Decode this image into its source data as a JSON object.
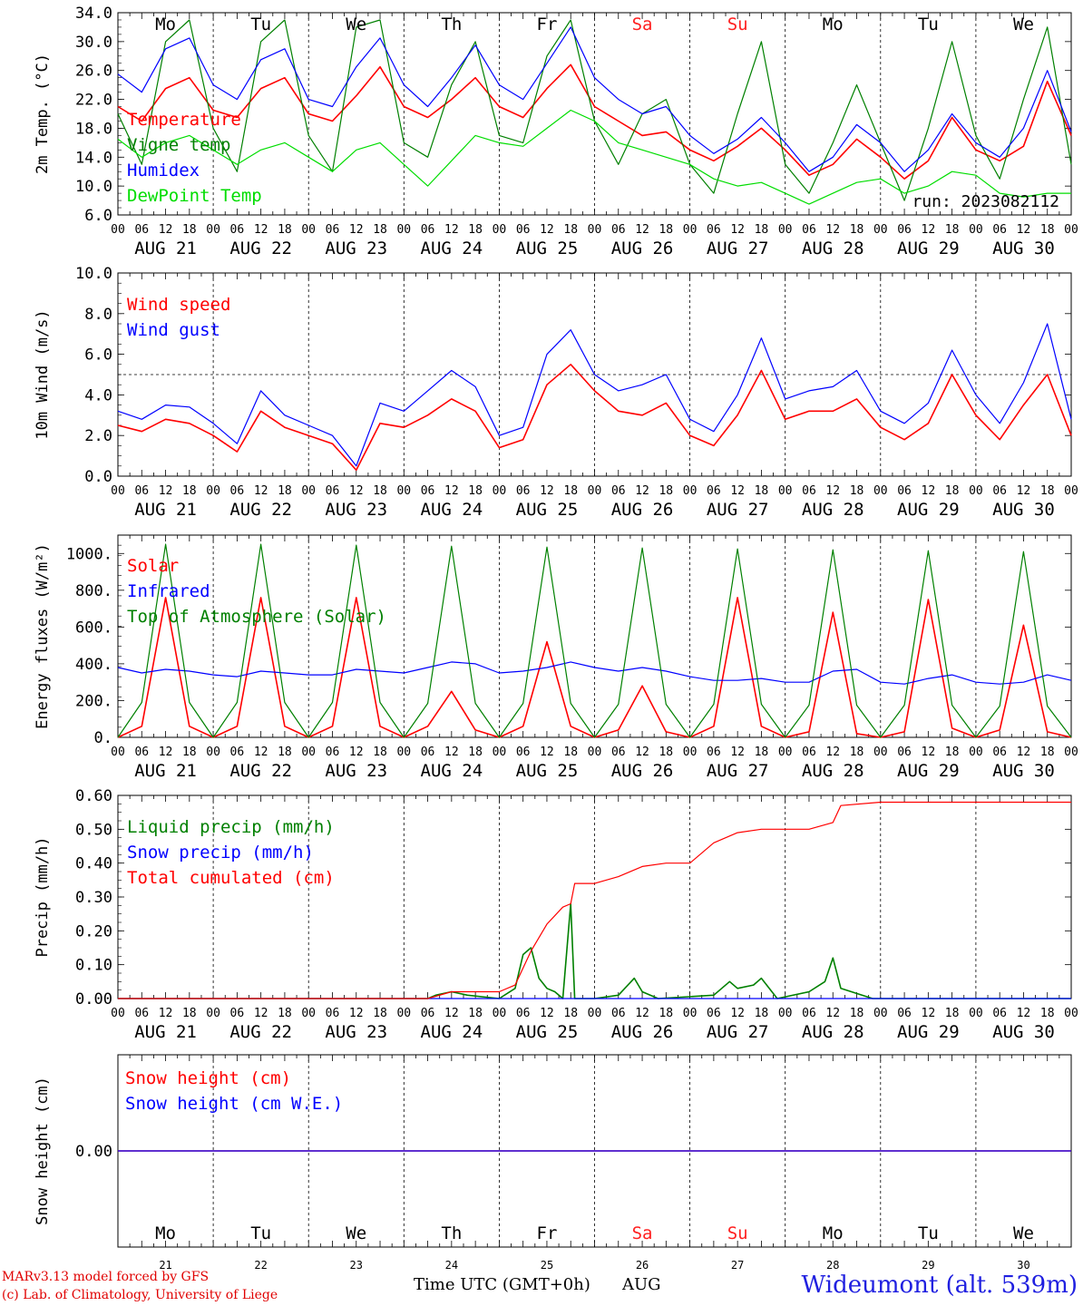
{
  "days": [
    "21",
    "22",
    "23",
    "24",
    "25",
    "26",
    "27",
    "28",
    "29",
    "30"
  ],
  "weekdays": [
    "Mo",
    "Tu",
    "We",
    "Th",
    "Fr",
    "Sa",
    "Su",
    "Mo",
    "Tu",
    "We"
  ],
  "weekday_colors": [
    "#000000",
    "#000000",
    "#000000",
    "#000000",
    "#000000",
    "#ff2020",
    "#ff2020",
    "#000000",
    "#000000",
    "#000000"
  ],
  "date_labels": [
    "AUG 21",
    "AUG 22",
    "AUG 23",
    "AUG 24",
    "AUG 25",
    "AUG 26",
    "AUG 27",
    "AUG 28",
    "AUG 29",
    "AUG 30"
  ],
  "hour_ticks": [
    "00",
    "06",
    "12",
    "18"
  ],
  "footer": {
    "credit_line1": "MARv3.13 model forced by GFS",
    "credit_line2": "(c) Lab. of Climatology, University of Liege",
    "xaxis_title": "Time UTC (GMT+0h)",
    "month": "AUG",
    "station": "Wideumont (alt. 539m)"
  },
  "chart_data": [
    {
      "type": "line",
      "ylabel": "2m Temp. (°C)",
      "ylim": [
        6.0,
        34.0
      ],
      "yticks": [
        "6.0",
        "10.0",
        "14.0",
        "18.0",
        "22.0",
        "26.0",
        "30.0",
        "34.0"
      ],
      "annotation": "run: 2023082112",
      "series": [
        {
          "name": "Temperature",
          "color": "#ff0000",
          "x": [
            0,
            6,
            12,
            18,
            24,
            30,
            36,
            42,
            48,
            54,
            60,
            66,
            72,
            78,
            84,
            90,
            96,
            102,
            108,
            114,
            120,
            126,
            132,
            138,
            144,
            150,
            156,
            162,
            168,
            174,
            180,
            186,
            192,
            198,
            204,
            210,
            216,
            222,
            228,
            234,
            240
          ],
          "values": [
            21,
            19,
            23.5,
            25,
            20.5,
            19.5,
            23.5,
            25,
            20,
            19,
            22.5,
            26.5,
            21,
            19.5,
            22,
            25,
            21,
            19.5,
            23.5,
            26.8,
            21,
            19,
            17,
            17.5,
            15,
            13.5,
            15.5,
            18,
            15,
            11.5,
            13,
            16.5,
            14,
            11,
            13.5,
            19.5,
            15,
            13.5,
            15.5,
            24.5,
            17
          ]
        },
        {
          "name": "Vigne temp",
          "color": "#008000",
          "x": [
            0,
            6,
            12,
            18,
            24,
            30,
            36,
            42,
            48,
            54,
            60,
            66,
            72,
            78,
            84,
            90,
            96,
            102,
            108,
            114,
            120,
            126,
            132,
            138,
            144,
            150,
            156,
            162,
            168,
            174,
            180,
            186,
            192,
            198,
            204,
            210,
            216,
            222,
            228,
            234,
            240
          ],
          "values": [
            20,
            13,
            30,
            33,
            18,
            12,
            30,
            33,
            17,
            12,
            32,
            33,
            16,
            14,
            24,
            30,
            17,
            16,
            28,
            33,
            19,
            13,
            20,
            22,
            13,
            9,
            20,
            30,
            13,
            9,
            16,
            24,
            16,
            8,
            18,
            30,
            17,
            11,
            22,
            32,
            13
          ]
        },
        {
          "name": "Humidex",
          "color": "#0000ff",
          "x": [
            0,
            6,
            12,
            18,
            24,
            30,
            36,
            42,
            48,
            54,
            60,
            66,
            72,
            78,
            84,
            90,
            96,
            102,
            108,
            114,
            120,
            126,
            132,
            138,
            144,
            150,
            156,
            162,
            168,
            174,
            180,
            186,
            192,
            198,
            204,
            210,
            216,
            222,
            228,
            234,
            240
          ],
          "values": [
            25.5,
            23,
            29,
            30.5,
            24,
            22,
            27.5,
            29,
            22,
            21,
            26.5,
            30.5,
            24,
            21,
            25,
            29.5,
            24,
            22,
            27,
            32,
            25,
            22,
            20,
            21,
            17,
            14.5,
            16.5,
            19.5,
            16,
            12,
            14,
            18.5,
            16,
            12,
            15,
            20,
            16,
            14,
            18,
            26,
            17.5
          ]
        },
        {
          "name": "DewPoint Temp",
          "color": "#00dd00",
          "x": [
            0,
            6,
            12,
            18,
            24,
            30,
            36,
            42,
            48,
            54,
            60,
            66,
            72,
            78,
            84,
            90,
            96,
            102,
            108,
            114,
            120,
            126,
            132,
            138,
            144,
            150,
            156,
            162,
            168,
            174,
            180,
            186,
            192,
            198,
            204,
            210,
            216,
            222,
            228,
            234,
            240
          ],
          "values": [
            16.5,
            14,
            16,
            17,
            15,
            13,
            15,
            16,
            14,
            12,
            15,
            16,
            13,
            10,
            13.5,
            17,
            16,
            15.5,
            18,
            20.5,
            19,
            16,
            15,
            14,
            13,
            11,
            10,
            10.5,
            9,
            7.5,
            9,
            10.5,
            11,
            9,
            10,
            12,
            11.5,
            9,
            8.5,
            9,
            9
          ]
        }
      ]
    },
    {
      "type": "line",
      "ylabel": "10m Wind (m/s)",
      "ylim": [
        0.0,
        10.0
      ],
      "yticks": [
        "0.0",
        "2.0",
        "4.0",
        "6.0",
        "8.0",
        "10.0"
      ],
      "reference_line": 5.0,
      "series": [
        {
          "name": "Wind speed",
          "color": "#ff0000",
          "x": [
            0,
            6,
            12,
            18,
            24,
            30,
            36,
            42,
            48,
            54,
            60,
            66,
            72,
            78,
            84,
            90,
            96,
            102,
            108,
            114,
            120,
            126,
            132,
            138,
            144,
            150,
            156,
            162,
            168,
            174,
            180,
            186,
            192,
            198,
            204,
            210,
            216,
            222,
            228,
            234,
            240
          ],
          "values": [
            2.5,
            2.2,
            2.8,
            2.6,
            2.0,
            1.2,
            3.2,
            2.4,
            2.0,
            1.6,
            0.3,
            2.6,
            2.4,
            3.0,
            3.8,
            3.2,
            1.4,
            1.8,
            4.5,
            5.5,
            4.2,
            3.2,
            3.0,
            3.6,
            2.0,
            1.5,
            3.0,
            5.2,
            2.8,
            3.2,
            3.2,
            3.8,
            2.4,
            1.8,
            2.6,
            5.0,
            3.0,
            1.8,
            3.5,
            5.0,
            2.0
          ]
        },
        {
          "name": "Wind gust",
          "color": "#0000ff",
          "x": [
            0,
            6,
            12,
            18,
            24,
            30,
            36,
            42,
            48,
            54,
            60,
            66,
            72,
            78,
            84,
            90,
            96,
            102,
            108,
            114,
            120,
            126,
            132,
            138,
            144,
            150,
            156,
            162,
            168,
            174,
            180,
            186,
            192,
            198,
            204,
            210,
            216,
            222,
            228,
            234,
            240
          ],
          "values": [
            3.2,
            2.8,
            3.5,
            3.4,
            2.6,
            1.6,
            4.2,
            3.0,
            2.5,
            2.0,
            0.5,
            3.6,
            3.2,
            4.2,
            5.2,
            4.4,
            2.0,
            2.4,
            6.0,
            7.2,
            5.0,
            4.2,
            4.5,
            5.0,
            2.8,
            2.2,
            4.0,
            6.8,
            3.8,
            4.2,
            4.4,
            5.2,
            3.2,
            2.6,
            3.6,
            6.2,
            4.0,
            2.6,
            4.6,
            7.5,
            2.8
          ]
        }
      ]
    },
    {
      "type": "line",
      "ylabel": "Energy fluxes (W/m²)",
      "ylim": [
        0,
        1100
      ],
      "yticks": [
        "0.",
        "200.",
        "400.",
        "600.",
        "800.",
        "1000."
      ],
      "series": [
        {
          "name": "Solar",
          "color": "#ff0000",
          "x": [
            0,
            6,
            12,
            18,
            24,
            30,
            36,
            42,
            48,
            54,
            60,
            66,
            72,
            78,
            84,
            90,
            96,
            102,
            108,
            114,
            120,
            126,
            132,
            138,
            144,
            150,
            156,
            162,
            168,
            174,
            180,
            186,
            192,
            198,
            204,
            210,
            216,
            222,
            228,
            234,
            240
          ],
          "values": [
            0,
            60,
            760,
            60,
            0,
            60,
            760,
            60,
            0,
            60,
            760,
            60,
            0,
            60,
            250,
            40,
            0,
            60,
            520,
            60,
            0,
            40,
            280,
            30,
            0,
            60,
            760,
            60,
            0,
            30,
            680,
            20,
            0,
            30,
            750,
            50,
            0,
            40,
            610,
            30,
            0
          ]
        },
        {
          "name": "Infrared",
          "color": "#0000ff",
          "x": [
            0,
            6,
            12,
            18,
            24,
            30,
            36,
            42,
            48,
            54,
            60,
            66,
            72,
            78,
            84,
            90,
            96,
            102,
            108,
            114,
            120,
            126,
            132,
            138,
            144,
            150,
            156,
            162,
            168,
            174,
            180,
            186,
            192,
            198,
            204,
            210,
            216,
            222,
            228,
            234,
            240
          ],
          "values": [
            380,
            350,
            370,
            360,
            340,
            330,
            360,
            350,
            340,
            340,
            370,
            360,
            350,
            380,
            410,
            400,
            350,
            360,
            380,
            410,
            380,
            360,
            380,
            360,
            330,
            310,
            310,
            320,
            300,
            300,
            360,
            370,
            300,
            290,
            320,
            340,
            300,
            290,
            300,
            340,
            310
          ]
        },
        {
          "name": "Top of Atmosphere (Solar)",
          "color": "#008000",
          "x": [
            0,
            6,
            12,
            18,
            24,
            30,
            36,
            42,
            48,
            54,
            60,
            66,
            72,
            78,
            84,
            90,
            96,
            102,
            108,
            114,
            120,
            126,
            132,
            138,
            144,
            150,
            156,
            162,
            168,
            174,
            180,
            186,
            192,
            198,
            204,
            210,
            216,
            222,
            228,
            234,
            240
          ],
          "values": [
            0,
            190,
            1050,
            190,
            0,
            190,
            1050,
            190,
            0,
            190,
            1045,
            190,
            0,
            185,
            1040,
            185,
            0,
            185,
            1035,
            185,
            0,
            180,
            1030,
            180,
            0,
            180,
            1025,
            180,
            0,
            175,
            1020,
            175,
            0,
            175,
            1015,
            175,
            0,
            170,
            1010,
            170,
            0
          ]
        }
      ]
    },
    {
      "type": "line",
      "ylabel": "Precip (mm/h)",
      "ylim": [
        0.0,
        0.6
      ],
      "yticks": [
        "0.00",
        "0.10",
        "0.20",
        "0.30",
        "0.40",
        "0.50",
        "0.60"
      ],
      "series": [
        {
          "name": "Liquid precip (mm/h)",
          "color": "#008000",
          "x": [
            0,
            78,
            80,
            84,
            88,
            96,
            100,
            102,
            104,
            106,
            108,
            110,
            112,
            114,
            115,
            116,
            118,
            120,
            126,
            130,
            132,
            136,
            150,
            154,
            156,
            160,
            162,
            166,
            174,
            178,
            180,
            182,
            190,
            192,
            240
          ],
          "values": [
            0,
            0,
            0.01,
            0.02,
            0.01,
            0,
            0.03,
            0.13,
            0.15,
            0.06,
            0.03,
            0.02,
            0,
            0.28,
            0,
            0,
            0,
            0,
            0.01,
            0.06,
            0.02,
            0,
            0.01,
            0.05,
            0.03,
            0.04,
            0.06,
            0,
            0.02,
            0.05,
            0.12,
            0.03,
            0,
            0,
            0
          ]
        },
        {
          "name": "Snow precip (mm/h)",
          "color": "#0000ff",
          "x": [
            0,
            240
          ],
          "values": [
            0,
            0
          ]
        },
        {
          "name": "Total cumulated (cm)",
          "color": "#ff0000",
          "x": [
            0,
            78,
            84,
            96,
            100,
            104,
            108,
            112,
            114,
            115,
            116,
            120,
            126,
            132,
            138,
            144,
            150,
            156,
            162,
            168,
            174,
            180,
            182,
            192,
            200,
            240
          ],
          "values": [
            0,
            0,
            0.02,
            0.02,
            0.04,
            0.14,
            0.22,
            0.27,
            0.28,
            0.34,
            0.34,
            0.34,
            0.36,
            0.39,
            0.4,
            0.4,
            0.46,
            0.49,
            0.5,
            0.5,
            0.5,
            0.52,
            0.57,
            0.58,
            0.58,
            0.58
          ]
        }
      ]
    },
    {
      "type": "line",
      "ylabel": "Snow height (cm)",
      "yticks": [
        "0.00"
      ],
      "series": [
        {
          "name": "Snow height (cm)",
          "color": "#ff0000",
          "x": [
            0,
            240
          ],
          "values": [
            0,
            0
          ]
        },
        {
          "name": "Snow height (cm W.E.)",
          "color": "#0000ff",
          "x": [
            0,
            240
          ],
          "values": [
            0,
            0
          ]
        }
      ]
    }
  ]
}
